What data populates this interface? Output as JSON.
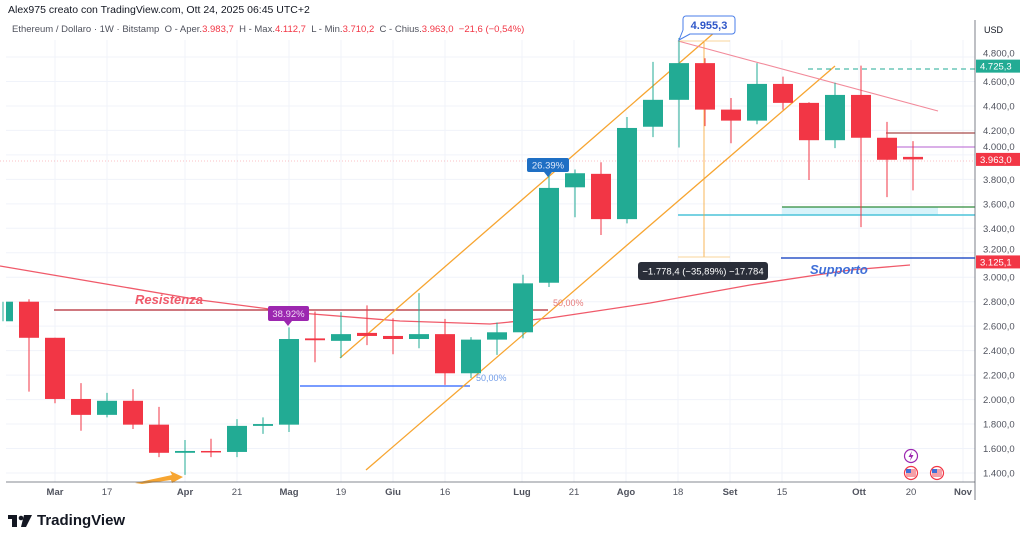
{
  "header": {
    "credit": "Alex975 creato con TradingView.com, Ott 24, 2025 06:45 UTC+2",
    "symbol": "Ethereum / Dollaro · 1W · Bitstamp",
    "open_label": "O - Aper.",
    "open": "3.983,7",
    "high_label": "H - Max.",
    "high": "4.112,7",
    "low_label": "L - Min.",
    "low": "3.710,2",
    "close_label": "C - Chius.",
    "close": "3.963,0",
    "change": "−21,6 (−0,54%)"
  },
  "axis": {
    "currency": "USD",
    "price_ticks": [
      "4.800,0",
      "4.600,0",
      "4.400,0",
      "4.200,0",
      "4.000,0",
      "3.800,0",
      "3.600,0",
      "3.400,0",
      "3.200,0",
      "3.000,0",
      "2.800,0",
      "2.600,0",
      "2.400,0",
      "2.200,0",
      "2.000,0",
      "1.800,0",
      "1.600,0",
      "1.400,0"
    ],
    "time_ticks": [
      "Mar",
      "17",
      "Apr",
      "21",
      "Mag",
      "19",
      "Giu",
      "16",
      "Lug",
      "21",
      "Ago",
      "18",
      "Set",
      "15",
      "Ott",
      "20",
      "Nov"
    ],
    "price_tags": [
      {
        "text": "4.725,3",
        "value": 4725.3,
        "color": "#22ab94"
      },
      {
        "text": "3.963,0",
        "value": 3963.0,
        "color": "#f23645"
      },
      {
        "text": "3.125,1",
        "value": 3125.1,
        "color": "#f23645"
      }
    ]
  },
  "annotations": {
    "resistance": "Resistenza",
    "support": "Supporto",
    "high_callout": "4.955,3",
    "pct_1": "38.92%",
    "pct_2": "26.39%",
    "fib_1": "50,00%",
    "fib_2": "50,00%",
    "measure": "−1.778,4 (−35,89%) −17.784"
  },
  "colors": {
    "up": "#22ab94",
    "down": "#f23645",
    "channel": "#f7a531",
    "ma": "#f05a6a"
  },
  "icons": [
    "lightning-icon",
    "us-flag-icon",
    "us-flag-icon"
  ],
  "logo": "TradingView",
  "chart_data": {
    "type": "candlestick",
    "interval": "1W",
    "ylim": [
      1300,
      4950
    ],
    "grid": true,
    "ohlc": [
      [
        2640,
        2800,
        2640,
        2800
      ],
      [
        2800,
        2820,
        2065,
        2505
      ],
      [
        2505,
        2505,
        1970,
        2005
      ],
      [
        2005,
        2135,
        1745,
        1875
      ],
      [
        1875,
        2055,
        1855,
        1990
      ],
      [
        1990,
        2085,
        1760,
        1795
      ],
      [
        1795,
        1940,
        1530,
        1565
      ],
      [
        1565,
        1670,
        1385,
        1580
      ],
      [
        1580,
        1680,
        1530,
        1570
      ],
      [
        1572,
        1840,
        1530,
        1785
      ],
      [
        1785,
        1855,
        1720,
        1800
      ],
      [
        1795,
        2590,
        1735,
        2495
      ],
      [
        2500,
        2720,
        2305,
        2485
      ],
      [
        2480,
        2715,
        2340,
        2535
      ],
      [
        2545,
        2770,
        2445,
        2520
      ],
      [
        2520,
        2665,
        2370,
        2495
      ],
      [
        2495,
        2870,
        2420,
        2535
      ],
      [
        2535,
        2660,
        2120,
        2215
      ],
      [
        2215,
        2510,
        2175,
        2490
      ],
      [
        2490,
        2630,
        2365,
        2550
      ],
      [
        2550,
        3020,
        2500,
        2950
      ],
      [
        2955,
        3850,
        2920,
        3730
      ],
      [
        3735,
        3880,
        3490,
        3850
      ],
      [
        3845,
        3940,
        3345,
        3475
      ],
      [
        3475,
        4310,
        3440,
        4220
      ],
      [
        4230,
        4760,
        4145,
        4450
      ],
      [
        4450,
        4955.3,
        4060,
        4750
      ],
      [
        4750,
        4790,
        4235,
        4370
      ],
      [
        4370,
        4465,
        4095,
        4280
      ],
      [
        4280,
        4750,
        4250,
        4580
      ],
      [
        4580,
        4640,
        4370,
        4425
      ],
      [
        4425,
        4430,
        3795,
        4120
      ],
      [
        4120,
        4590,
        4055,
        4490
      ],
      [
        4490,
        4730,
        3410,
        4140
      ],
      [
        4140,
        4270,
        3655,
        3960
      ],
      [
        3983.7,
        4112.7,
        3710.2,
        3963.0
      ]
    ]
  }
}
